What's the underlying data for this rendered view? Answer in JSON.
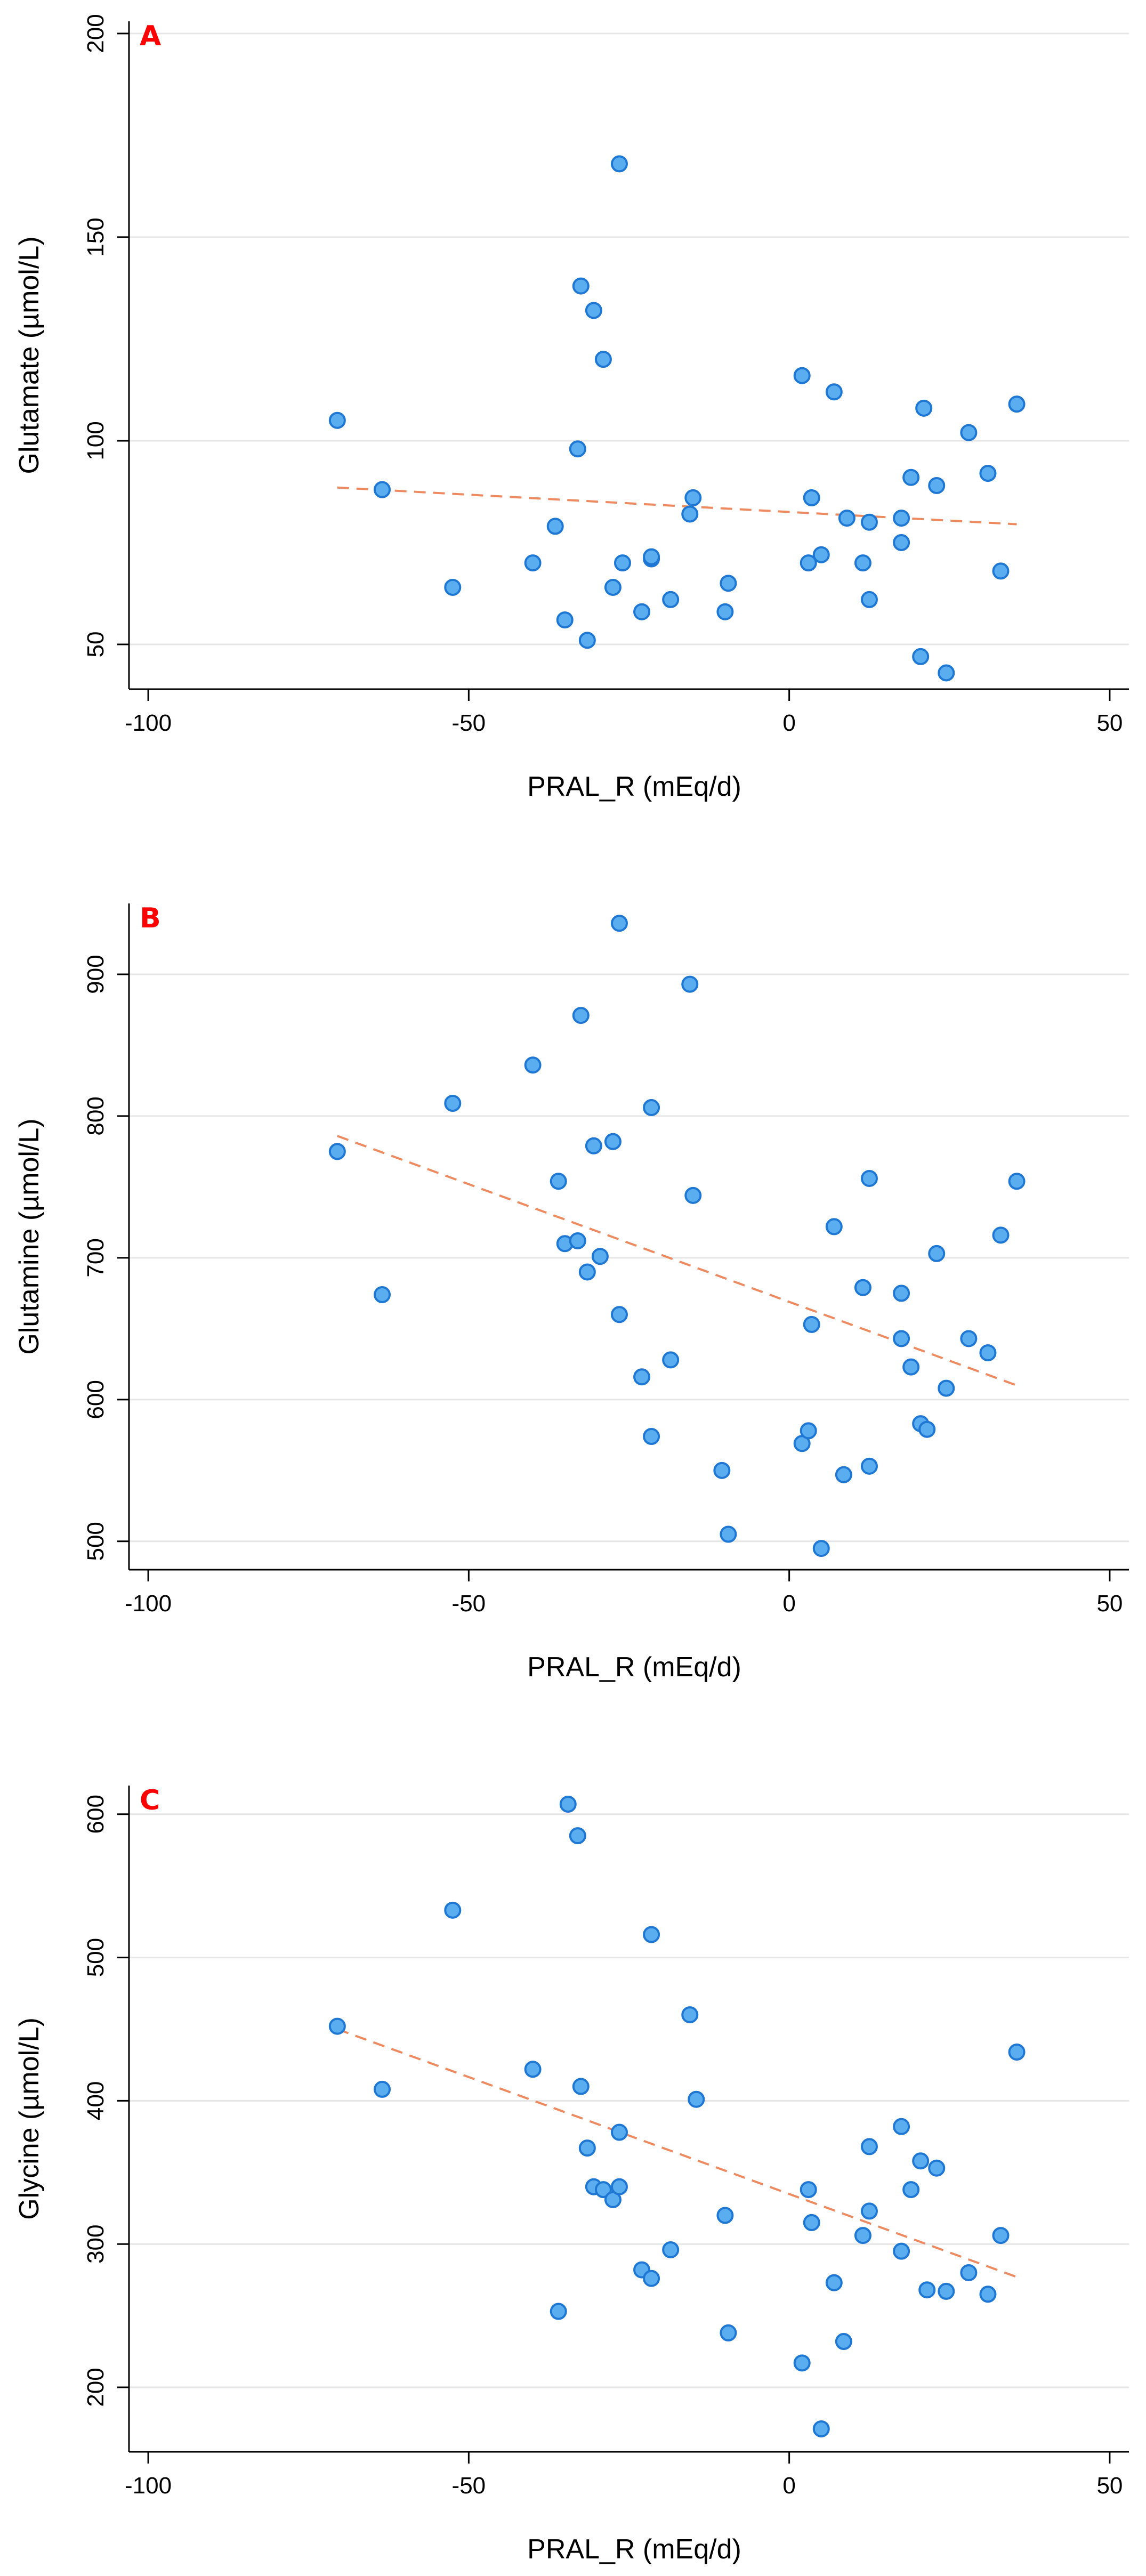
{
  "colors": {
    "point_fill": "#5aaef0",
    "point_stroke": "#1f77d4",
    "trend_line": "#ee8a60",
    "gridline": "#e6e6e6",
    "axis": "#000000",
    "panel_letter": "#ff0000"
  },
  "chart_data": [
    {
      "type": "scatter",
      "panel_label": "A",
      "xlabel": "PRAL_R (mEq/d)",
      "ylabel": "Glutamate (µmol/L)",
      "xlim": [
        -103,
        53
      ],
      "ylim": [
        39,
        203
      ],
      "xticks": [
        -100,
        -50,
        0,
        50
      ],
      "yticks": [
        50,
        100,
        150,
        200
      ],
      "grid": "horizontal",
      "trend_line": {
        "style": "dashed",
        "x": [
          -70.5,
          35.5
        ],
        "y": [
          88.5,
          79.5
        ]
      },
      "points": [
        {
          "x": -70.5,
          "y": 105
        },
        {
          "x": -63.5,
          "y": 88
        },
        {
          "x": -52.5,
          "y": 64
        },
        {
          "x": -40,
          "y": 70
        },
        {
          "x": -36.5,
          "y": 79
        },
        {
          "x": -35,
          "y": 56
        },
        {
          "x": -33,
          "y": 98
        },
        {
          "x": -32.5,
          "y": 138
        },
        {
          "x": -31.5,
          "y": 51
        },
        {
          "x": -30.5,
          "y": 132
        },
        {
          "x": -29,
          "y": 120
        },
        {
          "x": -27.5,
          "y": 64
        },
        {
          "x": -26.5,
          "y": 168
        },
        {
          "x": -26,
          "y": 70
        },
        {
          "x": -23,
          "y": 58
        },
        {
          "x": -21.5,
          "y": 71
        },
        {
          "x": -21.5,
          "y": 71.5
        },
        {
          "x": -18.5,
          "y": 61
        },
        {
          "x": -15.5,
          "y": 82
        },
        {
          "x": -15,
          "y": 86
        },
        {
          "x": -10,
          "y": 58
        },
        {
          "x": -9.5,
          "y": 65
        },
        {
          "x": 2,
          "y": 116
        },
        {
          "x": 3,
          "y": 70
        },
        {
          "x": 3.5,
          "y": 86
        },
        {
          "x": 5,
          "y": 72
        },
        {
          "x": 7,
          "y": 112
        },
        {
          "x": 9,
          "y": 81
        },
        {
          "x": 11.5,
          "y": 70
        },
        {
          "x": 12.5,
          "y": 80
        },
        {
          "x": 12.5,
          "y": 61
        },
        {
          "x": 17.5,
          "y": 75
        },
        {
          "x": 17.5,
          "y": 81
        },
        {
          "x": 19,
          "y": 91
        },
        {
          "x": 20.5,
          "y": 47
        },
        {
          "x": 21,
          "y": 108
        },
        {
          "x": 23,
          "y": 89
        },
        {
          "x": 24.5,
          "y": 43
        },
        {
          "x": 28,
          "y": 102
        },
        {
          "x": 31,
          "y": 92
        },
        {
          "x": 33,
          "y": 68
        },
        {
          "x": 35.5,
          "y": 109
        }
      ]
    },
    {
      "type": "scatter",
      "panel_label": "B",
      "xlabel": "PRAL_R (mEq/d)",
      "ylabel": "Glutamine (µmol/L)",
      "xlim": [
        -103,
        53
      ],
      "ylim": [
        480,
        950
      ],
      "xticks": [
        -100,
        -50,
        0,
        50
      ],
      "yticks": [
        500,
        600,
        700,
        800,
        900
      ],
      "grid": "horizontal",
      "trend_line": {
        "style": "dashed",
        "x": [
          -70.5,
          35.5
        ],
        "y": [
          786,
          610
        ]
      },
      "points": [
        {
          "x": -70.5,
          "y": 775
        },
        {
          "x": -63.5,
          "y": 674
        },
        {
          "x": -52.5,
          "y": 809
        },
        {
          "x": -40,
          "y": 836
        },
        {
          "x": -36,
          "y": 754
        },
        {
          "x": -35,
          "y": 710
        },
        {
          "x": -33,
          "y": 712
        },
        {
          "x": -32.5,
          "y": 871
        },
        {
          "x": -31.5,
          "y": 690
        },
        {
          "x": -30.5,
          "y": 779
        },
        {
          "x": -29.5,
          "y": 701
        },
        {
          "x": -27.5,
          "y": 782
        },
        {
          "x": -26.5,
          "y": 936
        },
        {
          "x": -26.5,
          "y": 660
        },
        {
          "x": -23,
          "y": 616
        },
        {
          "x": -21.5,
          "y": 806
        },
        {
          "x": -21.5,
          "y": 574
        },
        {
          "x": -18.5,
          "y": 628
        },
        {
          "x": -15.5,
          "y": 893
        },
        {
          "x": -15,
          "y": 744
        },
        {
          "x": -10.5,
          "y": 550
        },
        {
          "x": -9.5,
          "y": 505
        },
        {
          "x": 2,
          "y": 569
        },
        {
          "x": 3,
          "y": 578
        },
        {
          "x": 3.5,
          "y": 653
        },
        {
          "x": 5,
          "y": 495
        },
        {
          "x": 7,
          "y": 722
        },
        {
          "x": 8.5,
          "y": 547
        },
        {
          "x": 11.5,
          "y": 679
        },
        {
          "x": 12.5,
          "y": 756
        },
        {
          "x": 12.5,
          "y": 553
        },
        {
          "x": 17.5,
          "y": 675
        },
        {
          "x": 17.5,
          "y": 643
        },
        {
          "x": 19,
          "y": 623
        },
        {
          "x": 20.5,
          "y": 583
        },
        {
          "x": 21.5,
          "y": 579
        },
        {
          "x": 23,
          "y": 703
        },
        {
          "x": 24.5,
          "y": 608
        },
        {
          "x": 28,
          "y": 643
        },
        {
          "x": 31,
          "y": 633
        },
        {
          "x": 33,
          "y": 716
        },
        {
          "x": 35.5,
          "y": 754
        }
      ]
    },
    {
      "type": "scatter",
      "panel_label": "C",
      "xlabel": "PRAL_R (mEq/d)",
      "ylabel": "Glycine (µmol/L)",
      "xlim": [
        -103,
        53
      ],
      "ylim": [
        155,
        620
      ],
      "xticks": [
        -100,
        -50,
        0,
        50
      ],
      "yticks": [
        200,
        300,
        400,
        500,
        600
      ],
      "grid": "horizontal",
      "trend_line": {
        "style": "dashed",
        "x": [
          -70.5,
          35.5
        ],
        "y": [
          450,
          277
        ]
      },
      "points": [
        {
          "x": -70.5,
          "y": 452
        },
        {
          "x": -63.5,
          "y": 408
        },
        {
          "x": -52.5,
          "y": 533
        },
        {
          "x": -40,
          "y": 422
        },
        {
          "x": -36,
          "y": 253
        },
        {
          "x": -34.5,
          "y": 607
        },
        {
          "x": -33,
          "y": 585
        },
        {
          "x": -32.5,
          "y": 410
        },
        {
          "x": -31.5,
          "y": 367
        },
        {
          "x": -30.5,
          "y": 340
        },
        {
          "x": -29,
          "y": 338
        },
        {
          "x": -27.5,
          "y": 331
        },
        {
          "x": -26.5,
          "y": 378
        },
        {
          "x": -26.5,
          "y": 340
        },
        {
          "x": -23,
          "y": 282
        },
        {
          "x": -21.5,
          "y": 516
        },
        {
          "x": -21.5,
          "y": 276
        },
        {
          "x": -18.5,
          "y": 296
        },
        {
          "x": -15.5,
          "y": 460
        },
        {
          "x": -14.5,
          "y": 401
        },
        {
          "x": -10,
          "y": 320
        },
        {
          "x": -9.5,
          "y": 238
        },
        {
          "x": 2,
          "y": 217
        },
        {
          "x": 3,
          "y": 338
        },
        {
          "x": 3.5,
          "y": 315
        },
        {
          "x": 5,
          "y": 171
        },
        {
          "x": 7,
          "y": 273
        },
        {
          "x": 8.5,
          "y": 232
        },
        {
          "x": 11.5,
          "y": 306
        },
        {
          "x": 12.5,
          "y": 368
        },
        {
          "x": 12.5,
          "y": 323
        },
        {
          "x": 17.5,
          "y": 382
        },
        {
          "x": 17.5,
          "y": 295
        },
        {
          "x": 19,
          "y": 338
        },
        {
          "x": 20.5,
          "y": 358
        },
        {
          "x": 21.5,
          "y": 268
        },
        {
          "x": 23,
          "y": 353
        },
        {
          "x": 24.5,
          "y": 267
        },
        {
          "x": 28,
          "y": 280
        },
        {
          "x": 31,
          "y": 265
        },
        {
          "x": 33,
          "y": 306
        },
        {
          "x": 35.5,
          "y": 434
        }
      ]
    }
  ]
}
